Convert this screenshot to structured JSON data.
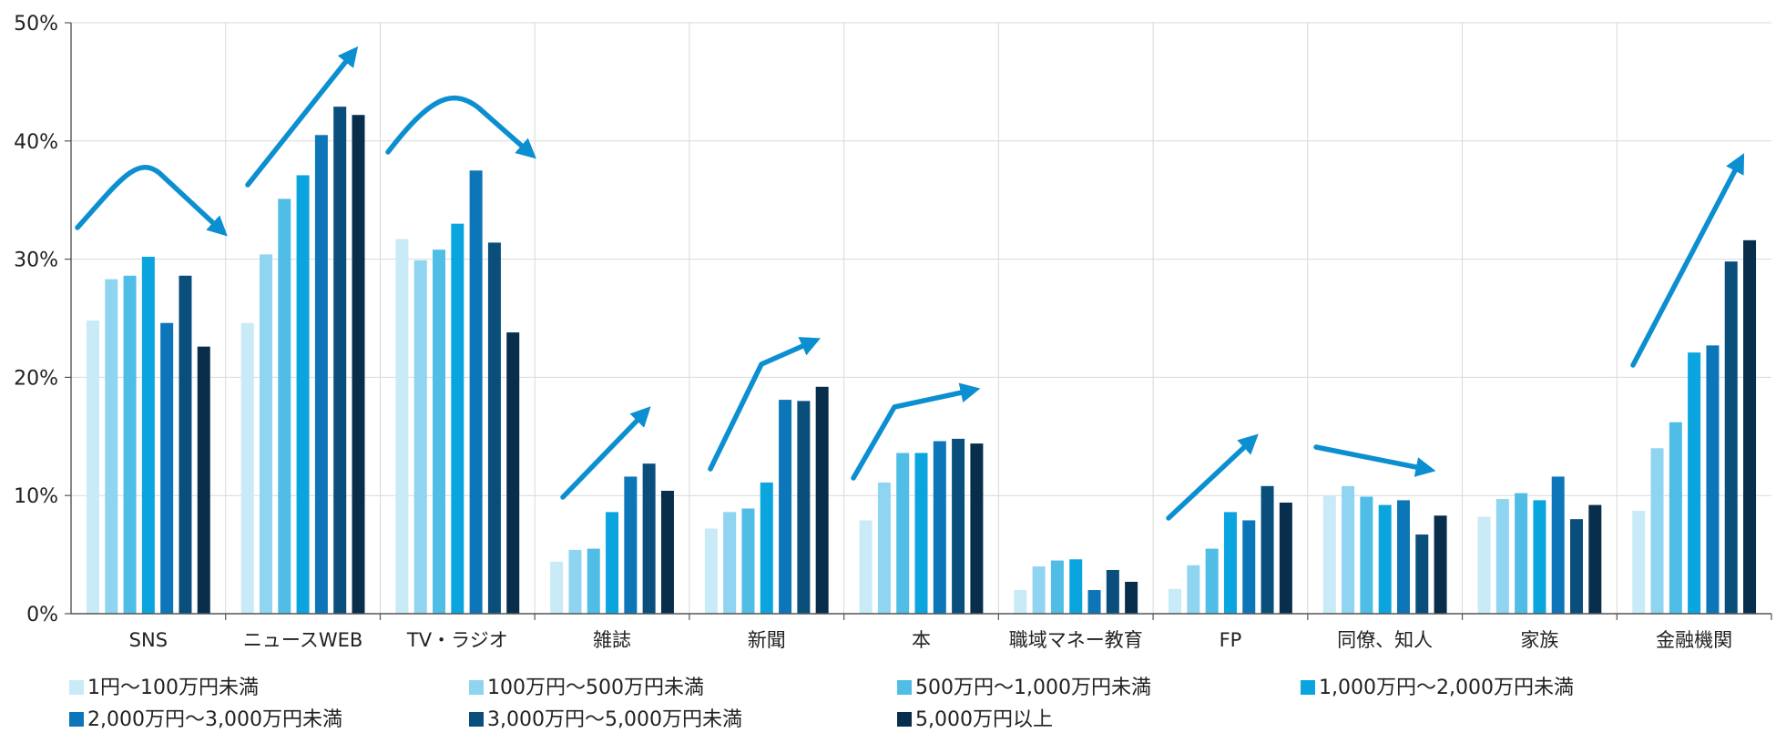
{
  "chart_data": {
    "type": "bar",
    "title": "",
    "xlabel": "",
    "ylabel": "",
    "ylim": [
      0,
      50
    ],
    "yticks": [
      "0%",
      "10%",
      "20%",
      "30%",
      "40%",
      "50%"
    ],
    "grid": true,
    "legend_position": "bottom",
    "categories": [
      "SNS",
      "ニュースWEB",
      "TV・ラジオ",
      "雑誌",
      "新聞",
      "本",
      "職域マネー教育",
      "FP",
      "同僚、知人",
      "家族",
      "金融機関"
    ],
    "series": [
      {
        "name": "1円～100万円未満",
        "color": "#c9eaf7",
        "values": [
          24.8,
          24.6,
          31.7,
          4.4,
          7.2,
          7.9,
          2.0,
          2.1,
          10.0,
          8.2,
          8.7
        ]
      },
      {
        "name": "100万円～500万円未満",
        "color": "#8fd4f0",
        "values": [
          28.3,
          30.4,
          29.9,
          5.4,
          8.6,
          11.1,
          4.0,
          4.1,
          10.8,
          9.7,
          14.0
        ]
      },
      {
        "name": "500万円～1,000万円未満",
        "color": "#4fbde6",
        "values": [
          28.6,
          35.1,
          30.8,
          5.5,
          8.9,
          13.6,
          4.5,
          5.5,
          9.9,
          10.2,
          16.2
        ]
      },
      {
        "name": "1,000万円～2,000万円未満",
        "color": "#0aa5df",
        "values": [
          30.2,
          37.1,
          33.0,
          8.6,
          11.1,
          13.6,
          4.6,
          8.6,
          9.2,
          9.6,
          22.1
        ]
      },
      {
        "name": "2,000万円～3,000万円未満",
        "color": "#0c76b8",
        "values": [
          24.6,
          40.5,
          37.5,
          11.6,
          18.1,
          14.6,
          2.0,
          7.9,
          9.6,
          11.6,
          22.7
        ]
      },
      {
        "name": "3,000万円～5,000万円未満",
        "color": "#0a4f7c",
        "values": [
          28.6,
          42.9,
          31.4,
          12.7,
          18.0,
          14.8,
          3.7,
          10.8,
          6.7,
          8.0,
          29.8
        ]
      },
      {
        "name": "5,000万円以上",
        "color": "#082e4b",
        "values": [
          22.6,
          42.2,
          23.8,
          10.4,
          19.2,
          14.4,
          2.7,
          9.4,
          8.3,
          9.2,
          31.6
        ]
      }
    ],
    "annotations": [
      {
        "category": "SNS",
        "kind": "rise-then-fall"
      },
      {
        "category": "ニュースWEB",
        "kind": "rising"
      },
      {
        "category": "TV・ラジオ",
        "kind": "rise-then-fall"
      },
      {
        "category": "雑誌",
        "kind": "rising"
      },
      {
        "category": "新聞",
        "kind": "rising"
      },
      {
        "category": "本",
        "kind": "rising"
      },
      {
        "category": "FP",
        "kind": "rising"
      },
      {
        "category": "同僚、知人",
        "kind": "falling"
      },
      {
        "category": "金融機関",
        "kind": "rising"
      }
    ],
    "arrow_color": "#0b8fd0"
  }
}
